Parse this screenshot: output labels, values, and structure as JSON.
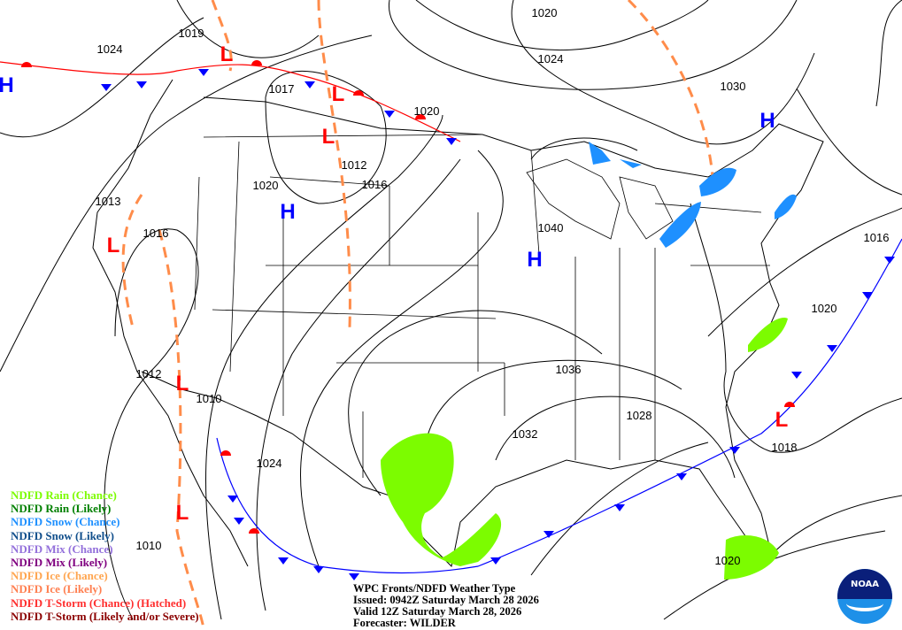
{
  "title_block": {
    "line1": "WPC Fronts/NDFD Weather Type",
    "line2": "Issued: 0942Z Saturday March 28 2026",
    "line3": "Valid 12Z Saturday March 28, 2026",
    "line4": "Forecaster: WILDER"
  },
  "logo": {
    "text": "NOAA"
  },
  "legend": [
    {
      "label": "NDFD Rain (Chance)",
      "color": "#7cfc00"
    },
    {
      "label": "NDFD Rain (Likely)",
      "color": "#008000"
    },
    {
      "label": "NDFD Snow (Chance)",
      "color": "#1e90ff"
    },
    {
      "label": "NDFD Snow (Likely)",
      "color": "#104e8b"
    },
    {
      "label": "NDFD Mix (Chance)",
      "color": "#9370db"
    },
    {
      "label": "NDFD Mix (Likely)",
      "color": "#800080"
    },
    {
      "label": "NDFD Ice (Chance)",
      "color": "#ffa54f"
    },
    {
      "label": "NDFD Ice (Likely)",
      "color": "#ff7f50"
    },
    {
      "label": "NDFD T-Storm (Chance) (Hatched)",
      "color": "#ff3030"
    },
    {
      "label": "NDFD T-Storm (Likely and/or Severe)",
      "color": "#8b0000"
    }
  ],
  "isobar_labels": [
    "1024",
    "1019",
    "1020",
    "1024",
    "1017",
    "1020",
    "1030",
    "1012",
    "1016",
    "1020",
    "1013",
    "1016",
    "1040",
    "1016",
    "1020",
    "1036",
    "1012",
    "1010",
    "1028",
    "1032",
    "1018",
    "1024",
    "1010",
    "1020"
  ],
  "highs": [
    "H",
    "H",
    "H",
    "H"
  ],
  "lows": [
    "L",
    "L",
    "L",
    "L",
    "L",
    "L",
    "L"
  ],
  "colors": {
    "high": "#0000ff",
    "low": "#ff0000",
    "cold_front": "#0000ff",
    "warm_front": "#ff0000",
    "trough": "#ff8c4a",
    "rain_chance": "#7cfc00",
    "snow_chance": "#1e90ff"
  }
}
